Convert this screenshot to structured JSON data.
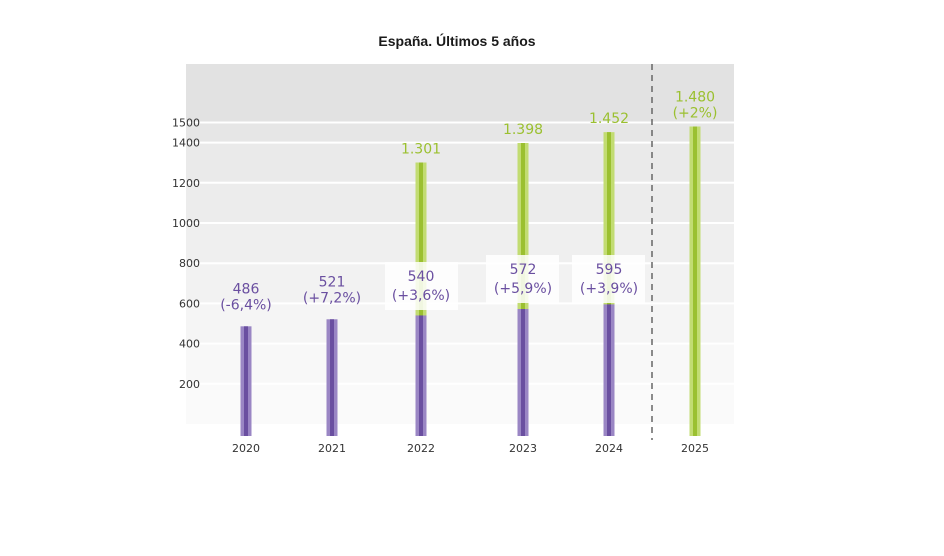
{
  "chart_data": {
    "type": "bar",
    "title": "España. Últimos 5 años",
    "categories": [
      "2020",
      "2021",
      "2022",
      "2023",
      "2024",
      "2025"
    ],
    "yticks": [
      "200",
      "400",
      "600",
      "800",
      "1000",
      "1200",
      "1400",
      "1500"
    ],
    "ylim": [
      0,
      1600
    ],
    "series": [
      {
        "values": [
          486,
          521,
          540,
          572,
          595,
          null
        ],
        "labels": [
          "486",
          "521",
          "540",
          "572",
          "595",
          ""
        ],
        "changes": [
          "(-6,4%)",
          "(+7,2%)",
          "(+3,6%)",
          "(+5,9%)",
          "(+3,9%)",
          ""
        ],
        "color": "#6a4fa0"
      },
      {
        "values": [
          null,
          null,
          1301,
          1398,
          1452,
          1480
        ],
        "labels": [
          "",
          "",
          "1.301",
          "1.398",
          "1.452",
          "1.480"
        ],
        "changes": [
          "",
          "",
          "",
          "",
          "",
          "(+2%)"
        ],
        "color": "#9bc030"
      }
    ],
    "grid": true,
    "separator_before": "2025"
  },
  "colors": {
    "purple": "#6a4fa0",
    "purple_light": "#9a86c4",
    "green": "#9bc030",
    "green_light": "#c2dc72"
  }
}
